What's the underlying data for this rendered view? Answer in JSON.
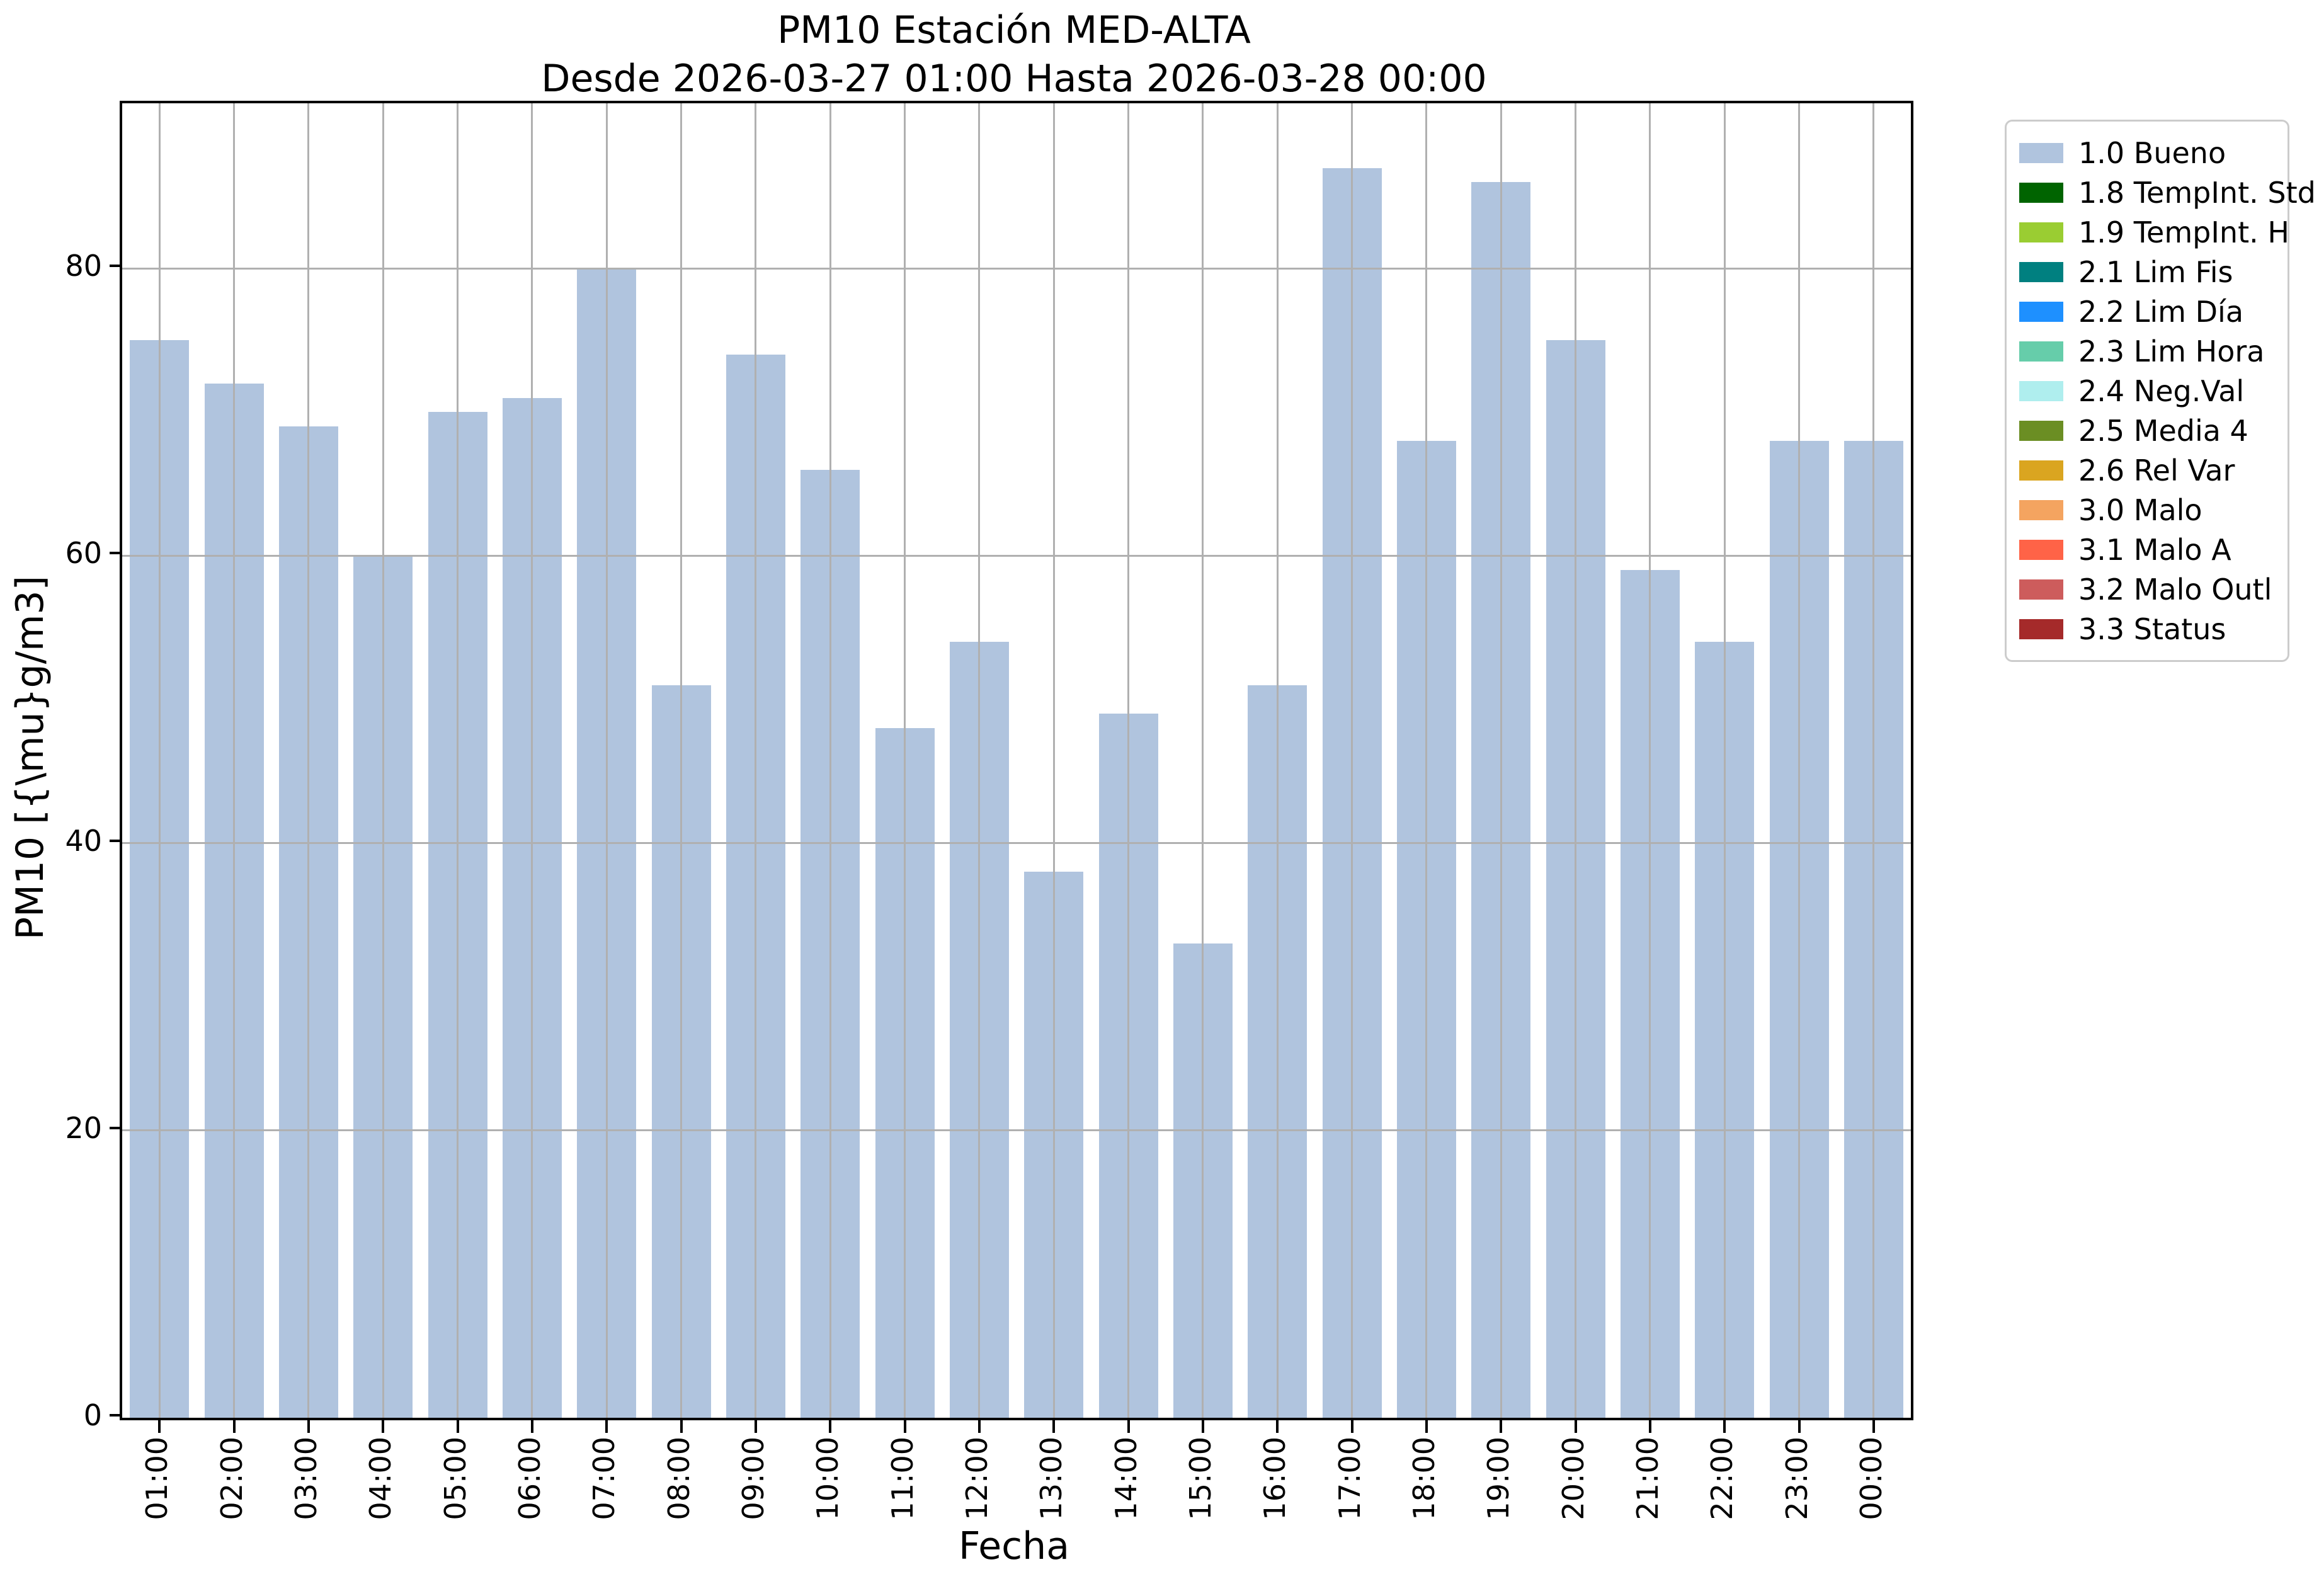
{
  "figure": {
    "title_line1": "PM10 Estación MED-ALTA",
    "title_line2": "Desde 2026-03-27 01:00 Hasta 2026-03-28 00:00"
  },
  "chart_data": {
    "type": "bar",
    "title": "PM10 Estación MED-ALTA",
    "subtitle": "Desde 2026-03-27 01:00 Hasta 2026-03-28 00:00",
    "xlabel": "Fecha",
    "ylabel": "PM10 [{\\mu}g/m3]",
    "categories": [
      "01:00",
      "02:00",
      "03:00",
      "04:00",
      "05:00",
      "06:00",
      "07:00",
      "08:00",
      "09:00",
      "10:00",
      "11:00",
      "12:00",
      "13:00",
      "14:00",
      "15:00",
      "16:00",
      "17:00",
      "18:00",
      "19:00",
      "20:00",
      "21:00",
      "22:00",
      "23:00",
      "00:00"
    ],
    "values": [
      75,
      72,
      69,
      60,
      70,
      71,
      80,
      51,
      74,
      66,
      48,
      54,
      38,
      49,
      33,
      51,
      87,
      68,
      86,
      75,
      59,
      54,
      68,
      68
    ],
    "bar_color": "#b0c4de",
    "grid": true,
    "grid_color": "#b0b0b0",
    "ylim": [
      0,
      91.5
    ],
    "yticks": [
      0,
      20,
      40,
      60,
      80
    ],
    "legend_position": "upper right outside",
    "legend": [
      {
        "label": "1.0 Bueno",
        "color": "#b0c4de"
      },
      {
        "label": "1.8 TempInt. Std",
        "color": "#006400"
      },
      {
        "label": "1.9 TempInt. H",
        "color": "#9acd32"
      },
      {
        "label": "2.1 Lim Fis",
        "color": "#008080"
      },
      {
        "label": "2.2 Lim Día",
        "color": "#1e90ff"
      },
      {
        "label": "2.3 Lim Hora",
        "color": "#66cdaa"
      },
      {
        "label": "2.4 Neg.Val",
        "color": "#afeeee"
      },
      {
        "label": "2.5 Media 4",
        "color": "#6b8e23"
      },
      {
        "label": "2.6 Rel Var",
        "color": "#daa520"
      },
      {
        "label": "3.0 Malo",
        "color": "#f4a460"
      },
      {
        "label": "3.1 Malo A",
        "color": "#ff6347"
      },
      {
        "label": "3.2 Malo Outl",
        "color": "#cd5c5c"
      },
      {
        "label": "3.3 Status",
        "color": "#a52a2a"
      }
    ]
  }
}
